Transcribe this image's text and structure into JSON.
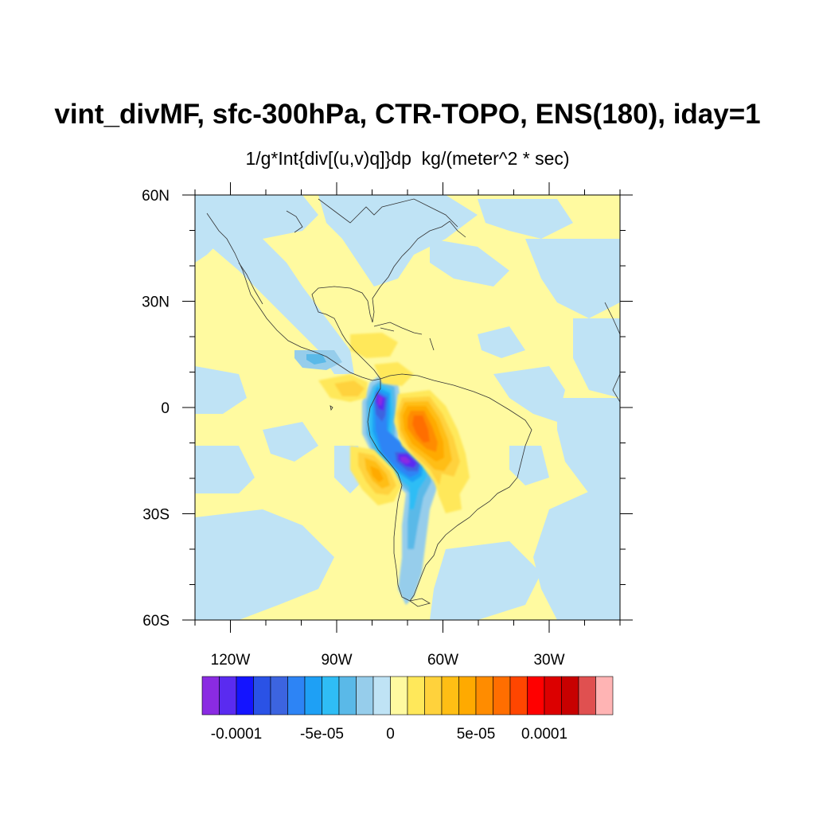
{
  "title": "vint_divMF, sfc-300hPa, CTR-TOPO, ENS(180), iday=1",
  "subtitle": "1/g*Int{div[(u,v)q]}dp  kg/(meter^2 * sec)",
  "map": {
    "projection": "cylindrical-equidistant",
    "lon_range": [
      -130,
      -10
    ],
    "lat_range": [
      -60,
      60
    ],
    "lat_labels": [
      "60N",
      "30N",
      "0",
      "30S",
      "60S"
    ],
    "lon_labels": [
      "120W",
      "90W",
      "60W",
      "30W"
    ],
    "field": "vertically integrated moisture flux divergence difference",
    "features": [
      {
        "name": "strong convergence along northern Andes (Colombia/Ecuador)",
        "level": "-0.0001"
      },
      {
        "name": "strong convergence along central Andes (Peru/Bolivia)",
        "level": "-0.0001"
      },
      {
        "name": "divergence maximum over western Amazon east of Andes",
        "level": "7e-05"
      },
      {
        "name": "divergence off Peru/northern Chile coast",
        "level": "5e-05"
      }
    ]
  },
  "colorbar": {
    "colors": [
      "#8a2be2",
      "#5a2bf0",
      "#1414ff",
      "#2a52e6",
      "#3c64e0",
      "#2d84f5",
      "#1ea0f5",
      "#2fbdf5",
      "#5ab9e8",
      "#96cdeb",
      "#bfe3f5",
      "#fffaa0",
      "#ffe85a",
      "#ffd23c",
      "#ffbe14",
      "#ffaa00",
      "#ff8c00",
      "#ff6e00",
      "#ff4600",
      "#ff0000",
      "#dc0000",
      "#c80000",
      "#e05050",
      "#ffb4b4"
    ],
    "labels": [
      "-0.0001",
      "-5e-05",
      "0",
      "5e-05",
      "0.0001"
    ]
  }
}
